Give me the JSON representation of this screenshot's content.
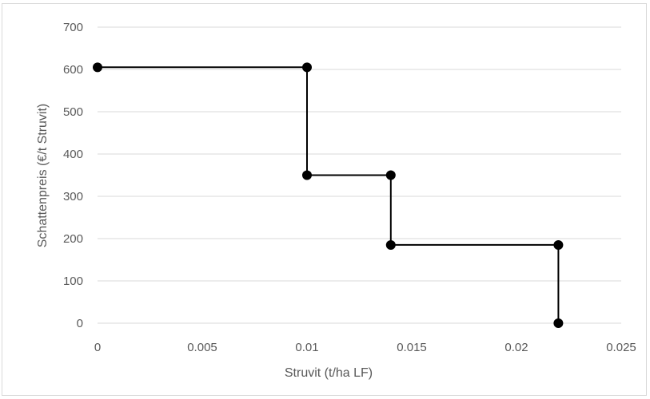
{
  "chart_data": {
    "type": "line",
    "title": "",
    "xlabel": "Struvit (t/ha LF)",
    "ylabel": "Schattenpreis (€/t Struvit)",
    "xlim": [
      0,
      0.025
    ],
    "ylim": [
      0,
      700
    ],
    "x_ticks": [
      0,
      0.005,
      0.01,
      0.015,
      0.02,
      0.025
    ],
    "x_tick_labels": [
      "0",
      "0.005",
      "0.01",
      "0.015",
      "0.02",
      "0.025"
    ],
    "y_ticks": [
      0,
      100,
      200,
      300,
      400,
      500,
      600,
      700
    ],
    "y_tick_labels": [
      "0",
      "100",
      "200",
      "300",
      "400",
      "500",
      "600",
      "700"
    ],
    "grid": true,
    "legend": "none",
    "series": [
      {
        "points": [
          {
            "x": 0,
            "y": 605
          },
          {
            "x": 0.01,
            "y": 605
          },
          {
            "x": 0.01,
            "y": 350
          },
          {
            "x": 0.014,
            "y": 350
          },
          {
            "x": 0.014,
            "y": 185
          },
          {
            "x": 0.022,
            "y": 185
          },
          {
            "x": 0.022,
            "y": 0
          }
        ],
        "color": "#000000"
      }
    ],
    "colors": {
      "grid": "#d9d9d9",
      "axis_text": "#595959",
      "line": "#000000",
      "marker": "#000000"
    }
  }
}
